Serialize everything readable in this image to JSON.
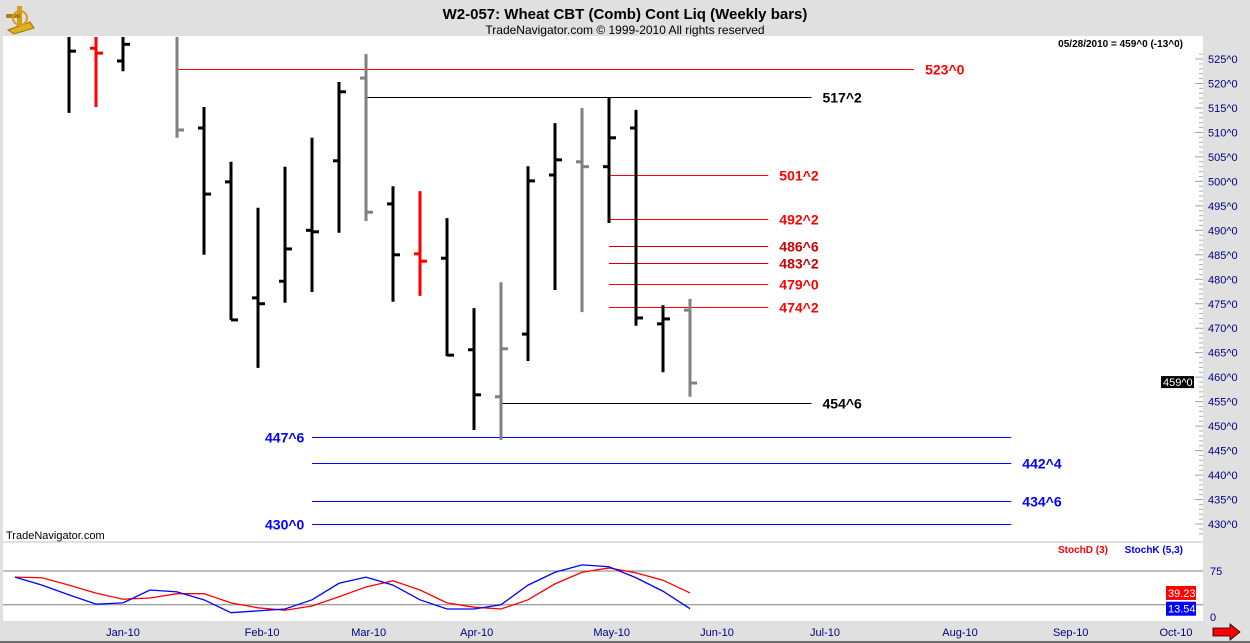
{
  "header": {
    "title": "W2-057:  Wheat CBT (Comb) Cont Liq  (Weekly bars)",
    "copyright": "TradeNavigator.com © 1999-2010 All rights reserved",
    "quote": "05/28/2010 = 459^0 (-13^0)",
    "watermark": "TradeNavigator.com"
  },
  "colors": {
    "up": "#000000",
    "down": "#ff0000",
    "gray": "#808080",
    "green": "#00dd00",
    "blue": "#0000ff",
    "axis_text": "#000080"
  },
  "chart_data": {
    "type": "bar",
    "subtype": "ohlc",
    "title": "W2-057:  Wheat CBT (Comb) Cont Liq  (Weekly bars)",
    "ylim": [
      427,
      531
    ],
    "y_ticks": [
      "525^0",
      "520^0",
      "515^0",
      "510^0",
      "505^0",
      "500^0",
      "495^0",
      "490^0",
      "485^0",
      "480^0",
      "475^0",
      "470^0",
      "465^0",
      "460^0",
      "455^0",
      "450^0",
      "445^0",
      "440^0",
      "435^0",
      "430^0"
    ],
    "y_tick_values": [
      525,
      520,
      515,
      510,
      505,
      500,
      495,
      490,
      485,
      480,
      475,
      470,
      465,
      460,
      455,
      450,
      445,
      440,
      435,
      430
    ],
    "last_price": {
      "label": "459^0",
      "value": 459
    },
    "x_ticks": [
      {
        "label": "Jan-10",
        "week": 4
      },
      {
        "label": "Feb-10",
        "week": 9.15
      },
      {
        "label": "Mar-10",
        "week": 13.1
      },
      {
        "label": "Apr-10",
        "week": 17.1
      },
      {
        "label": "May-10",
        "week": 22.1
      },
      {
        "label": "Jun-10",
        "week": 26.0
      },
      {
        "label": "Jul-10",
        "week": 30.0
      },
      {
        "label": "Aug-10",
        "week": 35.0
      },
      {
        "label": "Sep-10",
        "week": 39.1
      },
      {
        "label": "Oct-10",
        "week": 43.0
      }
    ],
    "bars": [
      {
        "week": 2,
        "o": 530,
        "h": 532,
        "l": 514,
        "c": 526.6,
        "color": "up"
      },
      {
        "week": 3,
        "o": 527.2,
        "h": 532,
        "l": 515.2,
        "c": 526.2,
        "color": "down"
      },
      {
        "week": 4,
        "o": 524.6,
        "h": 532,
        "l": 522.5,
        "c": 528,
        "color": "up"
      },
      {
        "week": 6,
        "o": 530,
        "h": 532,
        "l": 508.9,
        "c": 510.5,
        "color": "gray"
      },
      {
        "week": 7,
        "o": 510.9,
        "h": 515.2,
        "l": 485,
        "c": 497.4,
        "color": "up"
      },
      {
        "week": 8,
        "o": 499.9,
        "h": 504,
        "l": 471.7,
        "c": 471.7,
        "color": "up"
      },
      {
        "week": 9,
        "o": 476.2,
        "h": 494.6,
        "l": 461.9,
        "c": 475,
        "color": "up"
      },
      {
        "week": 10,
        "o": 479.6,
        "h": 503,
        "l": 475.2,
        "c": 486.2,
        "color": "up"
      },
      {
        "week": 11,
        "o": 490,
        "h": 508.9,
        "l": 477.4,
        "c": 489.7,
        "color": "up"
      },
      {
        "week": 12,
        "o": 504.2,
        "h": 520.3,
        "l": 489.5,
        "c": 518.3,
        "color": "up"
      },
      {
        "week": 13,
        "o": 521.1,
        "h": 526,
        "l": 491.9,
        "c": 493.7,
        "color": "gray"
      },
      {
        "week": 14,
        "o": 495.4,
        "h": 499,
        "l": 475.4,
        "c": 485,
        "color": "up"
      },
      {
        "week": 15,
        "o": 485.2,
        "h": 498,
        "l": 476.6,
        "c": 483.7,
        "color": "down"
      },
      {
        "week": 16,
        "o": 484.3,
        "h": 492.5,
        "l": 464.3,
        "c": 464.5,
        "color": "up"
      },
      {
        "week": 17,
        "o": 465.6,
        "h": 474.1,
        "l": 449.2,
        "c": 456.4,
        "color": "up"
      },
      {
        "week": 18,
        "o": 456,
        "h": 479.4,
        "l": 447.2,
        "c": 465.8,
        "color": "gray"
      },
      {
        "week": 19,
        "o": 468.8,
        "h": 503.1,
        "l": 463.3,
        "c": 500.1,
        "color": "up"
      },
      {
        "week": 20,
        "o": 501.3,
        "h": 511.9,
        "l": 477.8,
        "c": 504.4,
        "color": "up"
      },
      {
        "week": 21,
        "o": 504,
        "h": 515,
        "l": 473.3,
        "c": 503,
        "color": "gray"
      },
      {
        "week": 22,
        "o": 503,
        "h": 517.2,
        "l": 491.5,
        "c": 508.9,
        "color": "up"
      },
      {
        "week": 23,
        "o": 510.9,
        "h": 514.6,
        "l": 470.5,
        "c": 472.1,
        "color": "up"
      },
      {
        "week": 24,
        "o": 470.9,
        "h": 474.7,
        "l": 461,
        "c": 471.9,
        "color": "up"
      },
      {
        "week": 25,
        "o": 473.7,
        "h": 476,
        "l": 456,
        "c": 458.8,
        "color": "gray"
      }
    ],
    "levels": [
      {
        "label": "523^0",
        "value": 523.0,
        "from": 6,
        "to": 33.3,
        "color": "#ff0000",
        "label_side": "right"
      },
      {
        "label": "517^2",
        "value": 517.25,
        "from": 13,
        "to": 29.5,
        "color": "#000000",
        "label_side": "right"
      },
      {
        "label": "501^2",
        "value": 501.25,
        "from": 22,
        "to": 27.9,
        "color": "#ff0000",
        "label_side": "right"
      },
      {
        "label": "492^2",
        "value": 492.25,
        "from": 22,
        "to": 27.9,
        "color": "#ff0000",
        "label_side": "right"
      },
      {
        "label": "486^6",
        "value": 486.75,
        "from": 22,
        "to": 27.9,
        "color": "#cc0000",
        "label_side": "right"
      },
      {
        "label": "483^2",
        "value": 483.25,
        "from": 22,
        "to": 27.9,
        "color": "#cc0000",
        "label_side": "right"
      },
      {
        "label": "479^0",
        "value": 479.0,
        "from": 22,
        "to": 27.9,
        "color": "#ff0000",
        "label_side": "right"
      },
      {
        "label": "474^2",
        "value": 474.25,
        "from": 22,
        "to": 27.9,
        "color": "#ff0000",
        "label_side": "right"
      },
      {
        "label": "454^6",
        "value": 454.75,
        "from": 18,
        "to": 29.5,
        "color": "#000000",
        "label_side": "right"
      },
      {
        "label": "447^6",
        "value": 447.75,
        "from": 11,
        "to": 36.9,
        "color": "#0000ff",
        "label_side": "left"
      },
      {
        "label": "442^4",
        "value": 442.5,
        "from": 11,
        "to": 36.9,
        "color": "#0000ff",
        "label_side": "right"
      },
      {
        "label": "434^6",
        "value": 434.75,
        "from": 11,
        "to": 36.9,
        "color": "#0000ff",
        "label_side": "right"
      },
      {
        "label": "430^0",
        "value": 430.0,
        "from": 11,
        "to": 36.9,
        "color": "#0000ff",
        "label_side": "left"
      }
    ],
    "stochastic": {
      "ylim": [
        0,
        100
      ],
      "tick_labels": [
        "75",
        "0"
      ],
      "tick_values": [
        75,
        0
      ],
      "grid": [
        75,
        20
      ],
      "start_week": 0,
      "series": [
        {
          "name": "StochD (3)",
          "color": "#ff0000",
          "last_label": "39.23",
          "values": [
            65,
            64,
            52,
            39,
            29,
            31,
            38,
            38,
            23,
            15,
            11,
            18,
            33,
            49,
            59,
            44,
            23,
            16,
            13,
            28,
            54,
            73,
            80,
            72,
            60,
            39.23
          ]
        },
        {
          "name": "StochK (5,3)",
          "color": "#0000ff",
          "last_label": "13.54",
          "values": [
            65,
            52,
            36,
            21,
            23,
            44,
            41,
            28,
            7,
            10,
            13,
            28,
            55,
            65,
            52,
            28,
            13,
            13,
            20,
            52,
            73,
            85,
            82,
            64,
            42,
            13.54
          ]
        }
      ]
    }
  }
}
